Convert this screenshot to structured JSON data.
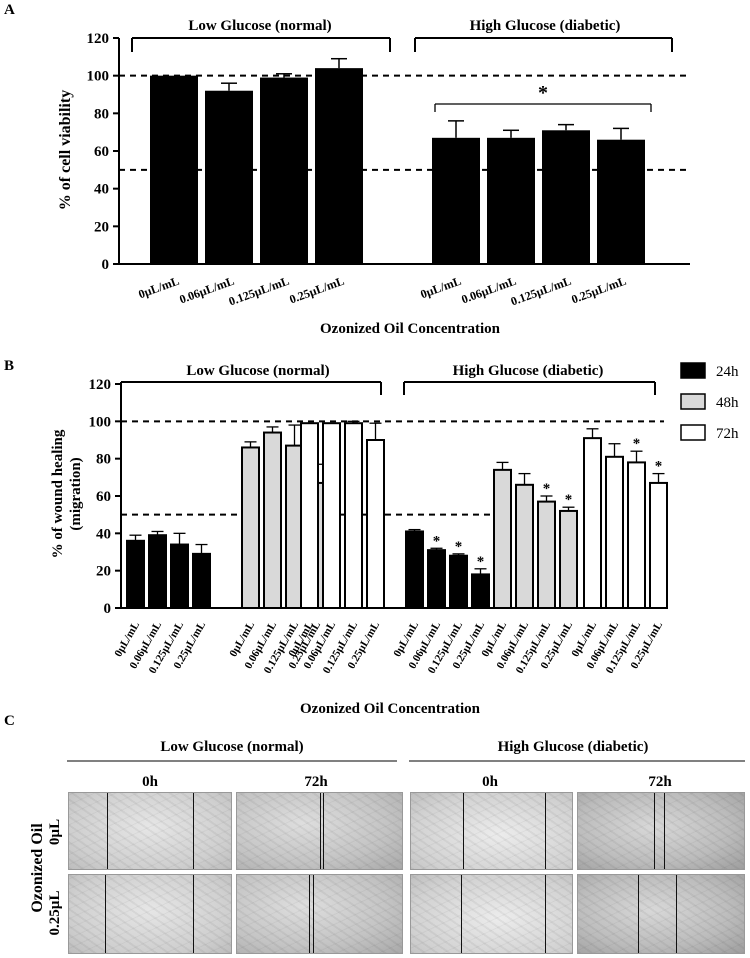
{
  "panel_labels": {
    "a": "A",
    "b": "B",
    "c": "C"
  },
  "chart_data": [
    {
      "type": "bar",
      "title": "",
      "group_labels": [
        "Low Glucose (normal)",
        "High Glucose (diabetic)"
      ],
      "categories": [
        "0µL/mL",
        "0.06µL/mL",
        "0.125µL/mL",
        "0.25µL/mL"
      ],
      "series": [
        {
          "name": "Low Glucose (normal)",
          "values": [
            100,
            92,
            99,
            104
          ],
          "errors": [
            0,
            4,
            2,
            5
          ]
        },
        {
          "name": "High Glucose (diabetic)",
          "values": [
            67,
            67,
            71,
            66
          ],
          "errors": [
            9,
            4,
            3,
            6
          ]
        }
      ],
      "xlabel": "Ozonized Oil Concentration",
      "ylabel": "% of cell viability",
      "ylim": [
        0,
        120
      ],
      "yticks": [
        "0",
        "20",
        "40",
        "60",
        "80",
        "100",
        "120"
      ],
      "reference_lines": [
        100,
        50
      ],
      "significance": "*"
    },
    {
      "type": "bar",
      "title": "",
      "group_labels": [
        "Low Glucose (normal)",
        "High Glucose (diabetic)"
      ],
      "categories": [
        "0µL/mL",
        "0.06µL/mL",
        "0.125µL/mL",
        "0.25µL/mL"
      ],
      "legend": [
        "24h",
        "48h",
        "72h"
      ],
      "legend_colors": [
        "#000000",
        "#d9d9d9",
        "#ffffff"
      ],
      "series": [
        {
          "group": "Low Glucose (normal)",
          "time": "24h",
          "values": [
            36,
            39,
            34,
            29
          ],
          "errors": [
            3,
            2,
            6,
            5
          ],
          "sig": [
            false,
            false,
            false,
            false
          ]
        },
        {
          "group": "Low Glucose (normal)",
          "time": "48h",
          "values": [
            86,
            94,
            87,
            67
          ],
          "errors": [
            3,
            3,
            11,
            10
          ],
          "sig": [
            false,
            false,
            false,
            false
          ]
        },
        {
          "group": "Low Glucose (normal)",
          "time": "72h",
          "values": [
            99,
            99,
            99,
            90
          ],
          "errors": [
            0,
            0,
            1,
            9
          ],
          "sig": [
            false,
            false,
            false,
            false
          ]
        },
        {
          "group": "High Glucose (diabetic)",
          "time": "24h",
          "values": [
            41,
            31,
            28,
            18
          ],
          "errors": [
            1,
            1,
            1,
            3
          ],
          "sig": [
            false,
            true,
            true,
            true
          ]
        },
        {
          "group": "High Glucose (diabetic)",
          "time": "48h",
          "values": [
            74,
            66,
            57,
            52
          ],
          "errors": [
            4,
            6,
            3,
            2
          ],
          "sig": [
            false,
            false,
            true,
            true
          ]
        },
        {
          "group": "High Glucose (diabetic)",
          "time": "72h",
          "values": [
            91,
            81,
            78,
            67
          ],
          "errors": [
            5,
            7,
            6,
            5
          ],
          "sig": [
            false,
            false,
            true,
            true
          ]
        }
      ],
      "xlabel": "Ozonized Oil Concentration",
      "ylabel_line1": "% of wound healing",
      "ylabel_line2": "(migration)",
      "ylim": [
        0,
        120
      ],
      "yticks": [
        "0",
        "20",
        "40",
        "60",
        "80",
        "100",
        "120"
      ],
      "reference_lines": [
        100,
        50
      ],
      "significance": "*"
    }
  ],
  "panel_c": {
    "group_labels": [
      "Low Glucose (normal)",
      "High Glucose (diabetic)"
    ],
    "time_labels": [
      "0h",
      "72h",
      "0h",
      "72h"
    ],
    "row_title": "Ozonized Oil",
    "row_labels": [
      "0µL",
      "0.25µL"
    ]
  }
}
